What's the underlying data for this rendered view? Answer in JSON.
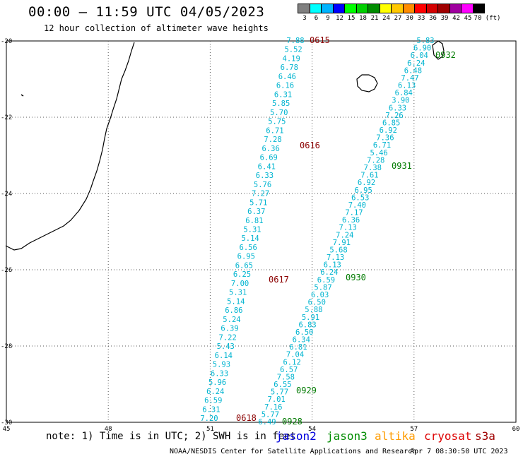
{
  "title": "00:00 – 11:59 UTC 04/05/2023",
  "subtitle": "12 hour collection of altimeter wave heights",
  "legend_scale": {
    "unit": "(ft)",
    "values": [
      "3",
      "6",
      "9",
      "12",
      "15",
      "18",
      "21",
      "24",
      "27",
      "30",
      "33",
      "36",
      "39",
      "42",
      "45",
      "70"
    ],
    "colors": [
      "#808080",
      "#00ffff",
      "#00b4ff",
      "#0000ff",
      "#00ff00",
      "#00d000",
      "#008c00",
      "#ffff00",
      "#ffc800",
      "#ff8c00",
      "#ff0000",
      "#d40000",
      "#a00000",
      "#a000a0",
      "#ff00ff",
      "#000000"
    ]
  },
  "map": {
    "lon_range": [
      45,
      60
    ],
    "lat_range": [
      -30,
      -20
    ],
    "x_ticks": [
      "45",
      "48",
      "51",
      "54",
      "57",
      "60"
    ],
    "y_ticks": [
      "-20",
      "-22",
      "-24",
      "-26",
      "-28",
      "-30"
    ],
    "grid": "dotted"
  },
  "tracks": {
    "cryosat": {
      "color": "#00b4d0",
      "readings": [
        "7.88",
        "5.52",
        "4.19",
        "6.78",
        "6.46",
        "6.16",
        "6.31",
        "5.85",
        "5.70",
        "5.75",
        "6.71",
        "7.28",
        "6.36",
        "6.69",
        "6.41",
        "6.33",
        "5.76",
        "7.27",
        "5.71",
        "6.37",
        "6.81",
        "5.31",
        "5.14",
        "6.56",
        "6.95",
        "6.65",
        "6.25",
        "7.00",
        "5.31",
        "5.14",
        "6.86",
        "5.24",
        "6.39",
        "7.22",
        "5.43",
        "6.14",
        "5.93",
        "6.33",
        "5.96",
        "6.24",
        "6.59",
        "6.31",
        "7.20"
      ],
      "times": [
        "0615",
        "0616",
        "0617",
        "0618"
      ]
    },
    "jason3": {
      "color": "#00b4d0",
      "readings": [
        "5.83",
        "6.90",
        "6.04",
        "6.24",
        "6.48",
        "7.47",
        "6.13",
        "6.84",
        "3.90",
        "6.33",
        "7.26",
        "6.85",
        "6.92",
        "7.36",
        "6.71",
        "5.46",
        "7.28",
        "7.38",
        "7.61",
        "6.92",
        "6.95",
        "6.53",
        "7.40",
        "7.17",
        "6.36",
        "7.13",
        "7.24",
        "7.91",
        "5.68",
        "7.13",
        "6.13",
        "6.24",
        "6.59",
        "5.87",
        "6.03",
        "6.50",
        "5.88",
        "5.91",
        "6.83",
        "6.50",
        "6.34",
        "6.81",
        "7.04",
        "6.12",
        "6.57",
        "7.58",
        "6.55",
        "5.77",
        "7.01",
        "7.16",
        "5.77",
        "6.49"
      ],
      "times": [
        "0932",
        "0931",
        "0930",
        "0929",
        "0928"
      ]
    }
  },
  "footer": {
    "note": "note: 1) Time is in UTC; 2) SWH is in feet",
    "satellites": [
      {
        "name": "jason2",
        "color": "#0000dd"
      },
      {
        "name": "jason3",
        "color": "#008c00"
      },
      {
        "name": "altika",
        "color": "#ff9c00"
      },
      {
        "name": "cryosat",
        "color": "#dd0000"
      },
      {
        "name": "s3a",
        "color": "#a00000"
      }
    ],
    "credit": "NOAA/NESDIS Center for Satellite Applications and Research",
    "timestamp": "Apr  7 08:30:50 UTC 2023"
  }
}
